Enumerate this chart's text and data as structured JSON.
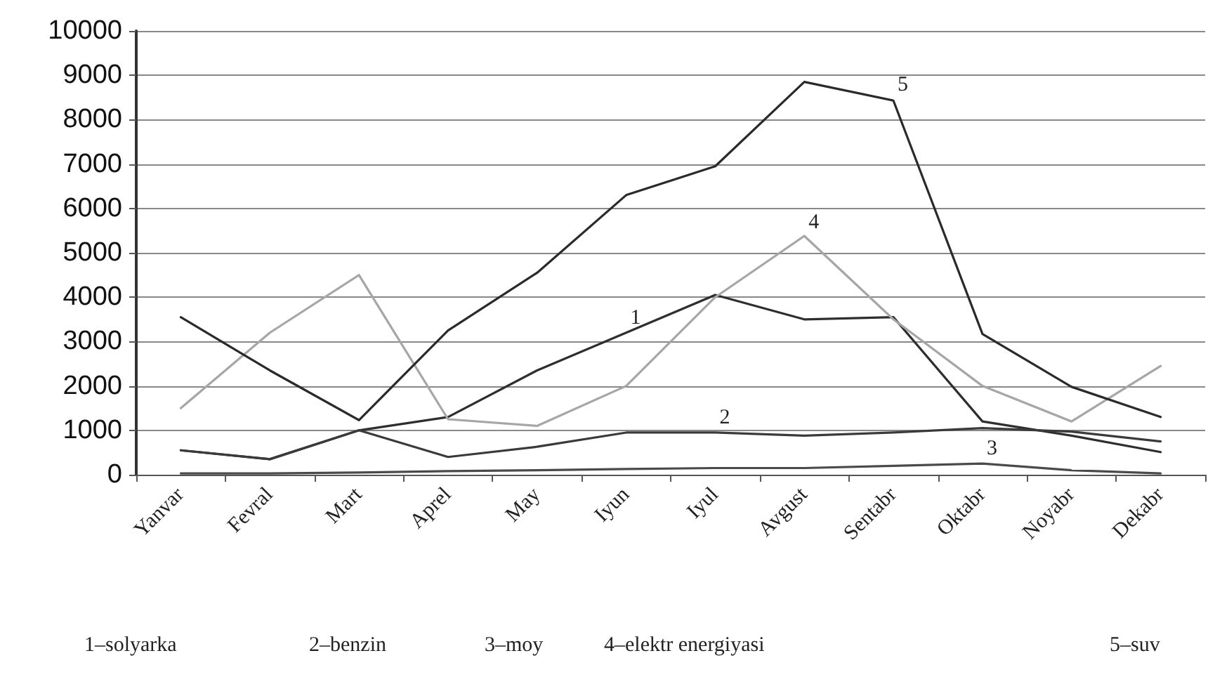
{
  "chart_data": {
    "type": "line",
    "categories": [
      "Yanvar",
      "Fevral",
      "Mart",
      "Aprel",
      "May",
      "Iyun",
      "Iyul",
      "Avgust",
      "Sentabr",
      "Oktabr",
      "Noyabr",
      "Dekabr"
    ],
    "series": [
      {
        "color": "#2e2e2e",
        "values": [
          550,
          350,
          1000,
          1300,
          2350,
          3200,
          4050,
          3500,
          3550,
          1200,
          880,
          510
        ]
      },
      {
        "color": "#3a3a3a",
        "values": [
          550,
          350,
          1000,
          400,
          630,
          950,
          950,
          880,
          950,
          1050,
          970,
          750
        ]
      },
      {
        "color": "#4a4a4a",
        "values": [
          30,
          30,
          50,
          80,
          100,
          130,
          150,
          150,
          200,
          250,
          100,
          30
        ]
      },
      {
        "color": "#a6a6a6",
        "values": [
          1500,
          3200,
          4500,
          1250,
          1100,
          2000,
          4000,
          5380,
          3500,
          2000,
          1200,
          2450
        ]
      },
      {
        "color": "#2a2a2a",
        "values": [
          3550,
          2350,
          1230,
          3250,
          4550,
          6300,
          6950,
          8850,
          8430,
          3170,
          1980,
          1300
        ]
      }
    ],
    "ylim": [
      0,
      10000
    ],
    "yticks": [
      0,
      1000,
      2000,
      3000,
      4000,
      5000,
      6000,
      7000,
      8000,
      9000,
      10000
    ],
    "grid": "y",
    "marker": "none",
    "line_style": "solid",
    "annotations": [
      {
        "text": "1",
        "x": "Iyun",
        "y": 3200
      },
      {
        "text": "2",
        "x": "Iyul",
        "y": 950
      },
      {
        "text": "3",
        "x": "Oktabr",
        "y": 250
      },
      {
        "text": "4",
        "x": "Avgust",
        "y": 5350
      },
      {
        "text": "5",
        "x": "Sentabr",
        "y": 8450
      },
      "1–solyarka",
      "2–benzin",
      "3–moy",
      "4–elektr energiyasi",
      "5–suv"
    ]
  }
}
